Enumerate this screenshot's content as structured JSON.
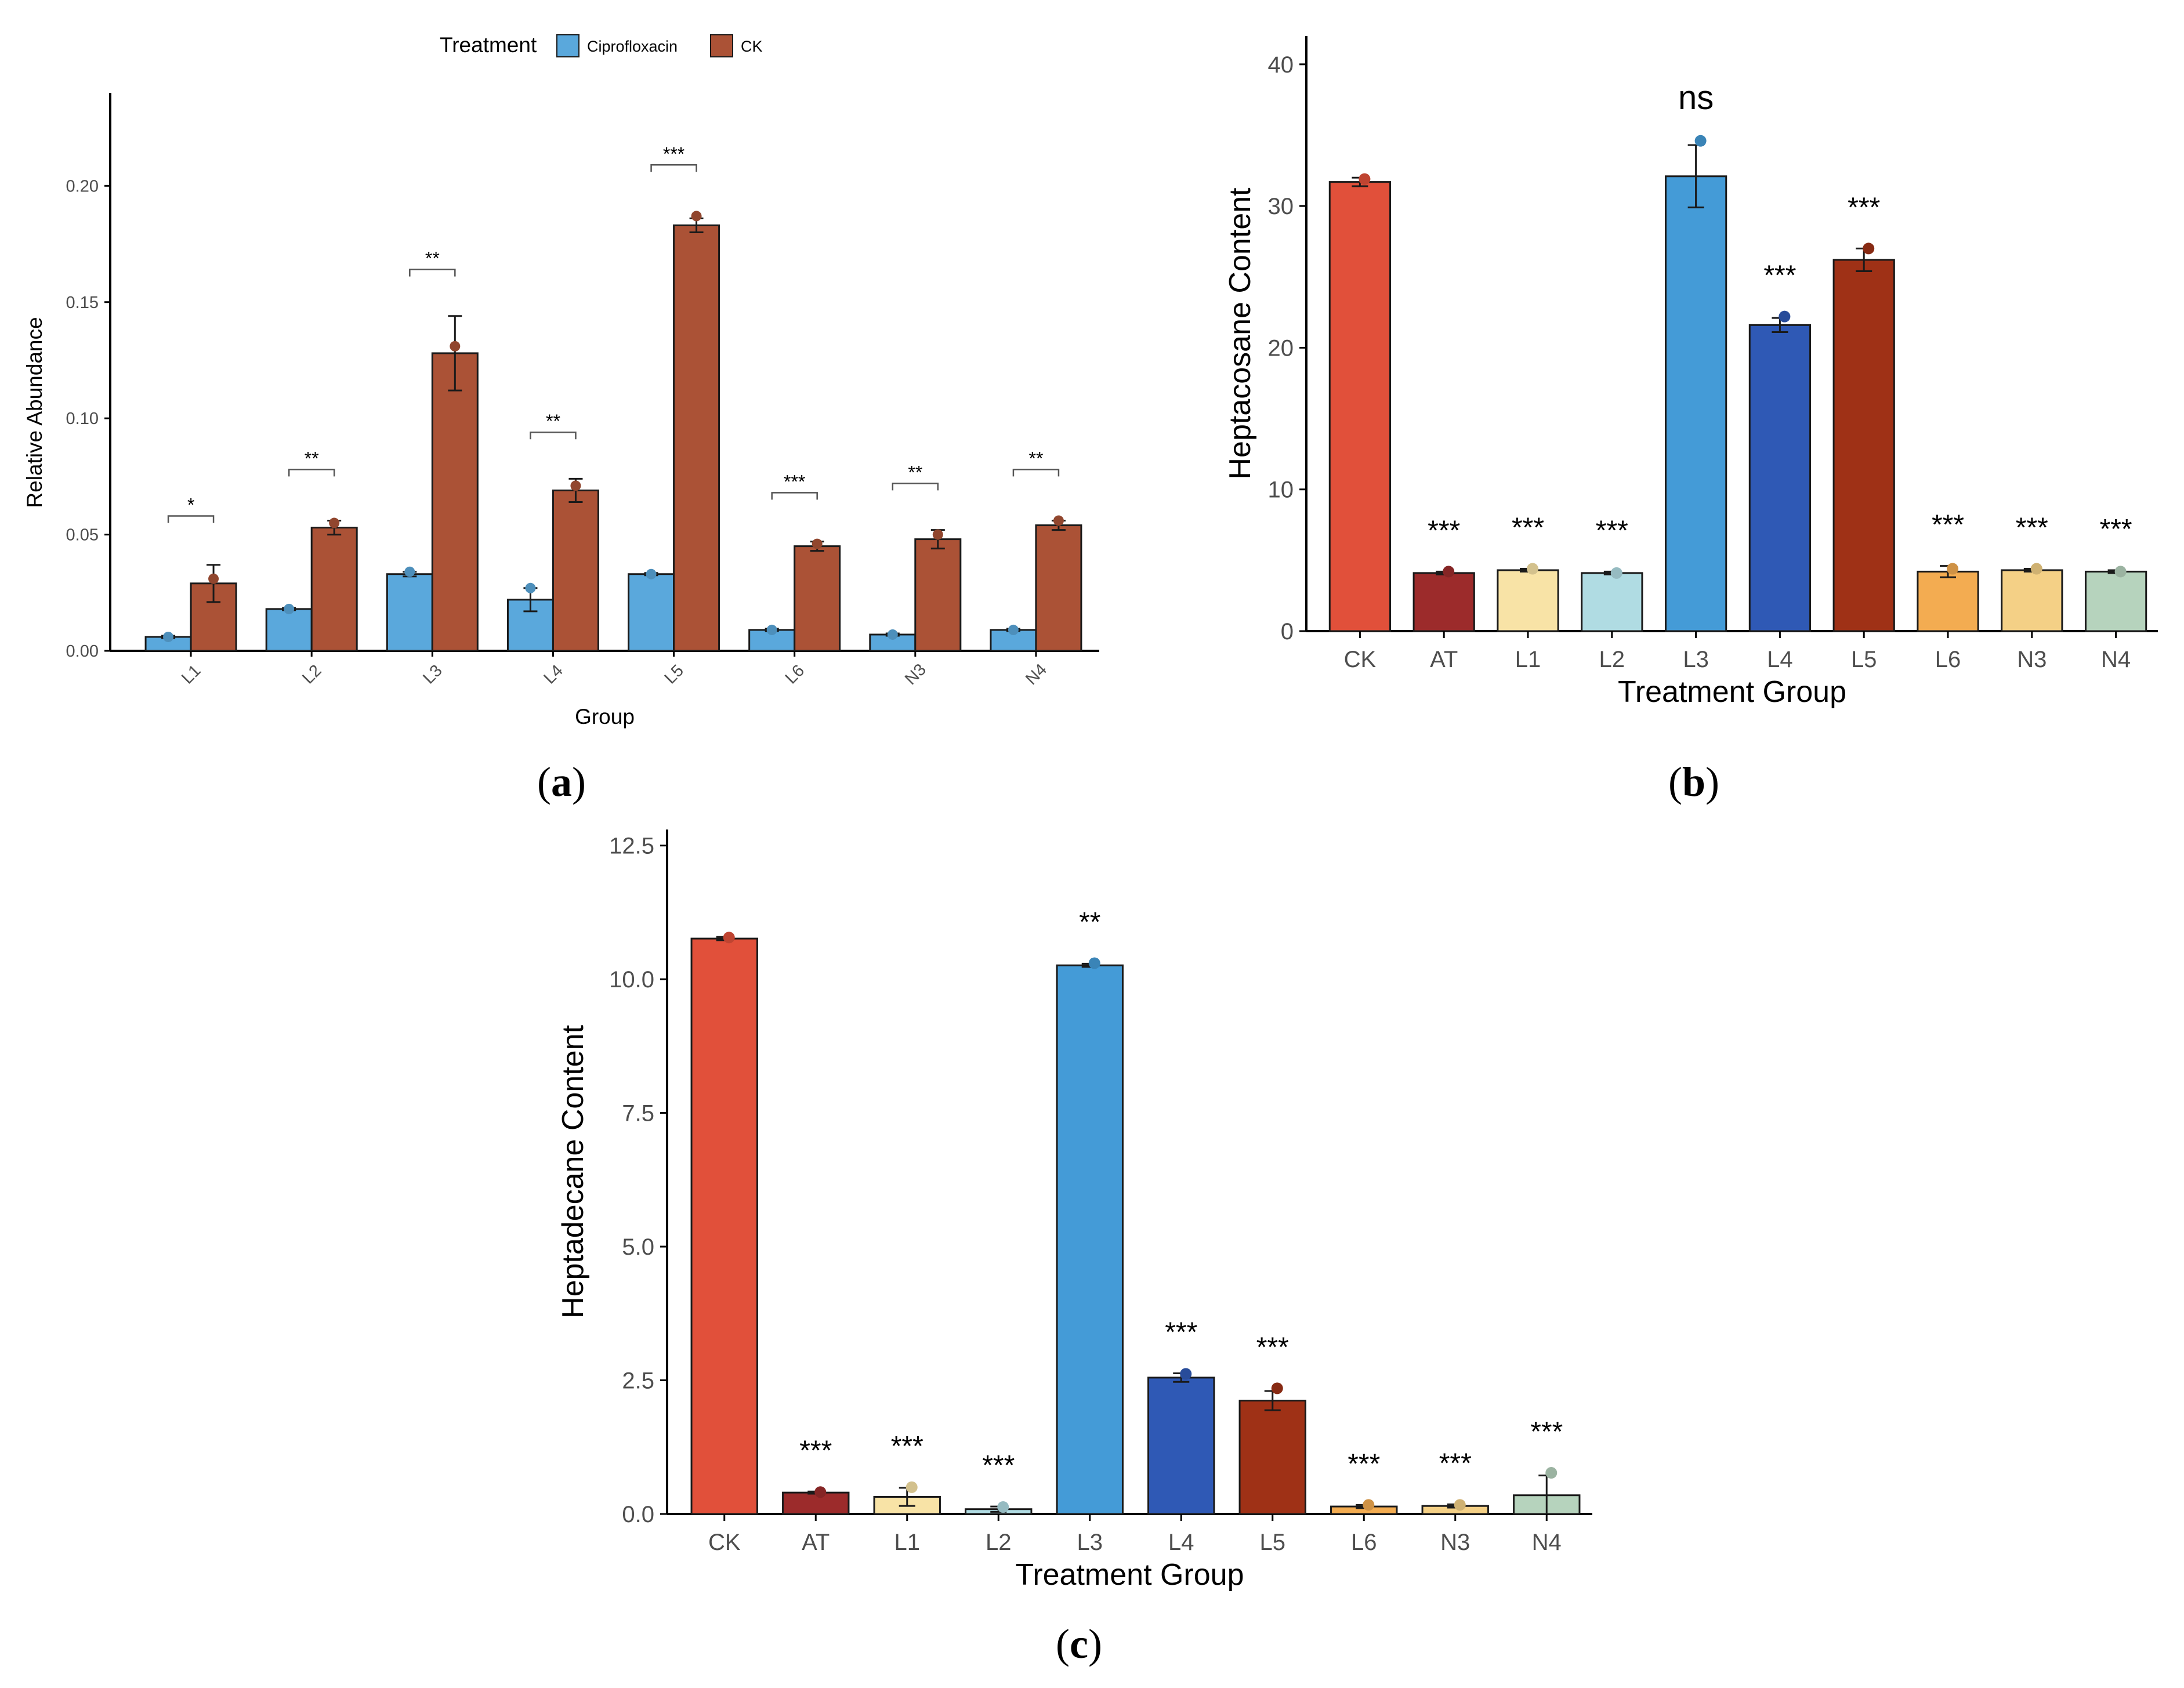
{
  "figure": {
    "panel_labels": [
      "a",
      "b",
      "c"
    ]
  },
  "chart_data": [
    {
      "id": "a",
      "type": "bar",
      "xlabel": "Group",
      "ylabel": "Relative Abundance",
      "ylim": [
        0,
        0.24
      ],
      "yticks": [
        "0.00",
        "0.05",
        "0.10",
        "0.15",
        "0.20"
      ],
      "grid": false,
      "legend": {
        "title": "Treatment",
        "position": "top",
        "entries": [
          "Ciprofloxacin",
          "CK"
        ]
      },
      "categories": [
        "L1",
        "L2",
        "L3",
        "L4",
        "L5",
        "L6",
        "N3",
        "N4"
      ],
      "series": [
        {
          "name": "Ciprofloxacin",
          "color": "#5aa8dc",
          "values": [
            0.006,
            0.018,
            0.033,
            0.022,
            0.033,
            0.009,
            0.007,
            0.009
          ],
          "errors": [
            0.0005,
            0.0005,
            0.001,
            0.005,
            0.0005,
            0.0005,
            0.0005,
            0.0005
          ],
          "points": [
            0.006,
            0.018,
            0.034,
            0.027,
            0.033,
            0.009,
            0.007,
            0.009
          ]
        },
        {
          "name": "CK",
          "color": "#ab5236",
          "values": [
            0.029,
            0.053,
            0.128,
            0.069,
            0.183,
            0.045,
            0.048,
            0.054
          ],
          "errors": [
            0.008,
            0.003,
            0.016,
            0.005,
            0.003,
            0.002,
            0.004,
            0.002
          ],
          "points": [
            0.031,
            0.055,
            0.131,
            0.071,
            0.187,
            0.046,
            0.05,
            0.056
          ]
        }
      ],
      "significance": [
        "*",
        "**",
        "**",
        "**",
        "***",
        "***",
        "**",
        "**"
      ],
      "bracket_y": [
        0.058,
        0.078,
        0.164,
        0.094,
        0.209,
        0.068,
        0.072,
        0.078
      ]
    },
    {
      "id": "b",
      "type": "bar",
      "xlabel": "Treatment Group",
      "ylabel": "Heptacosane Content",
      "ylim": [
        0,
        42
      ],
      "yticks": [
        "0",
        "10",
        "20",
        "30",
        "40"
      ],
      "grid": false,
      "categories": [
        "CK",
        "AT",
        "L1",
        "L2",
        "L3",
        "L4",
        "L5",
        "L6",
        "N3",
        "N4"
      ],
      "colors": [
        "#e1503a",
        "#9c2b2b",
        "#f8e3a6",
        "#b0dce3",
        "#449bd7",
        "#2f59b5",
        "#9f3116",
        "#f3ac51",
        "#f4d086",
        "#b6d3bd"
      ],
      "values": [
        31.7,
        4.1,
        4.3,
        4.1,
        32.1,
        21.6,
        26.2,
        4.2,
        4.3,
        4.2
      ],
      "errors": [
        0.3,
        0.1,
        0.1,
        0.1,
        2.2,
        0.5,
        0.8,
        0.4,
        0.1,
        0.1
      ],
      "points": [
        31.9,
        4.2,
        4.4,
        4.1,
        34.6,
        22.2,
        27.0,
        4.4,
        4.4,
        4.2
      ],
      "significance": [
        "",
        "***",
        "***",
        "***",
        "ns",
        "***",
        "***",
        "***",
        "***",
        "***"
      ]
    },
    {
      "id": "c",
      "type": "bar",
      "xlabel": "Treatment Group",
      "ylabel": "Heptadecane Content",
      "ylim": [
        0,
        12.8
      ],
      "yticks": [
        "0.0",
        "2.5",
        "5.0",
        "7.5",
        "10.0",
        "12.5"
      ],
      "grid": false,
      "categories": [
        "CK",
        "AT",
        "L1",
        "L2",
        "L3",
        "L4",
        "L5",
        "L6",
        "N3",
        "N4"
      ],
      "colors": [
        "#e1503a",
        "#9c2b2b",
        "#f8e3a6",
        "#b0dce3",
        "#449bd7",
        "#2f59b5",
        "#9f3116",
        "#f3ac51",
        "#f4d086",
        "#b6d3bd"
      ],
      "values": [
        10.76,
        0.4,
        0.32,
        0.09,
        10.26,
        2.55,
        2.12,
        0.14,
        0.15,
        0.35
      ],
      "errors": [
        0.03,
        0.02,
        0.17,
        0.05,
        0.03,
        0.08,
        0.18,
        0.03,
        0.03,
        0.37
      ],
      "points": [
        10.78,
        0.41,
        0.5,
        0.13,
        10.3,
        2.62,
        2.35,
        0.17,
        0.17,
        0.77
      ],
      "significance": [
        "",
        "***",
        "***",
        "***",
        "**",
        "***",
        "***",
        "***",
        "***",
        "***"
      ]
    }
  ]
}
